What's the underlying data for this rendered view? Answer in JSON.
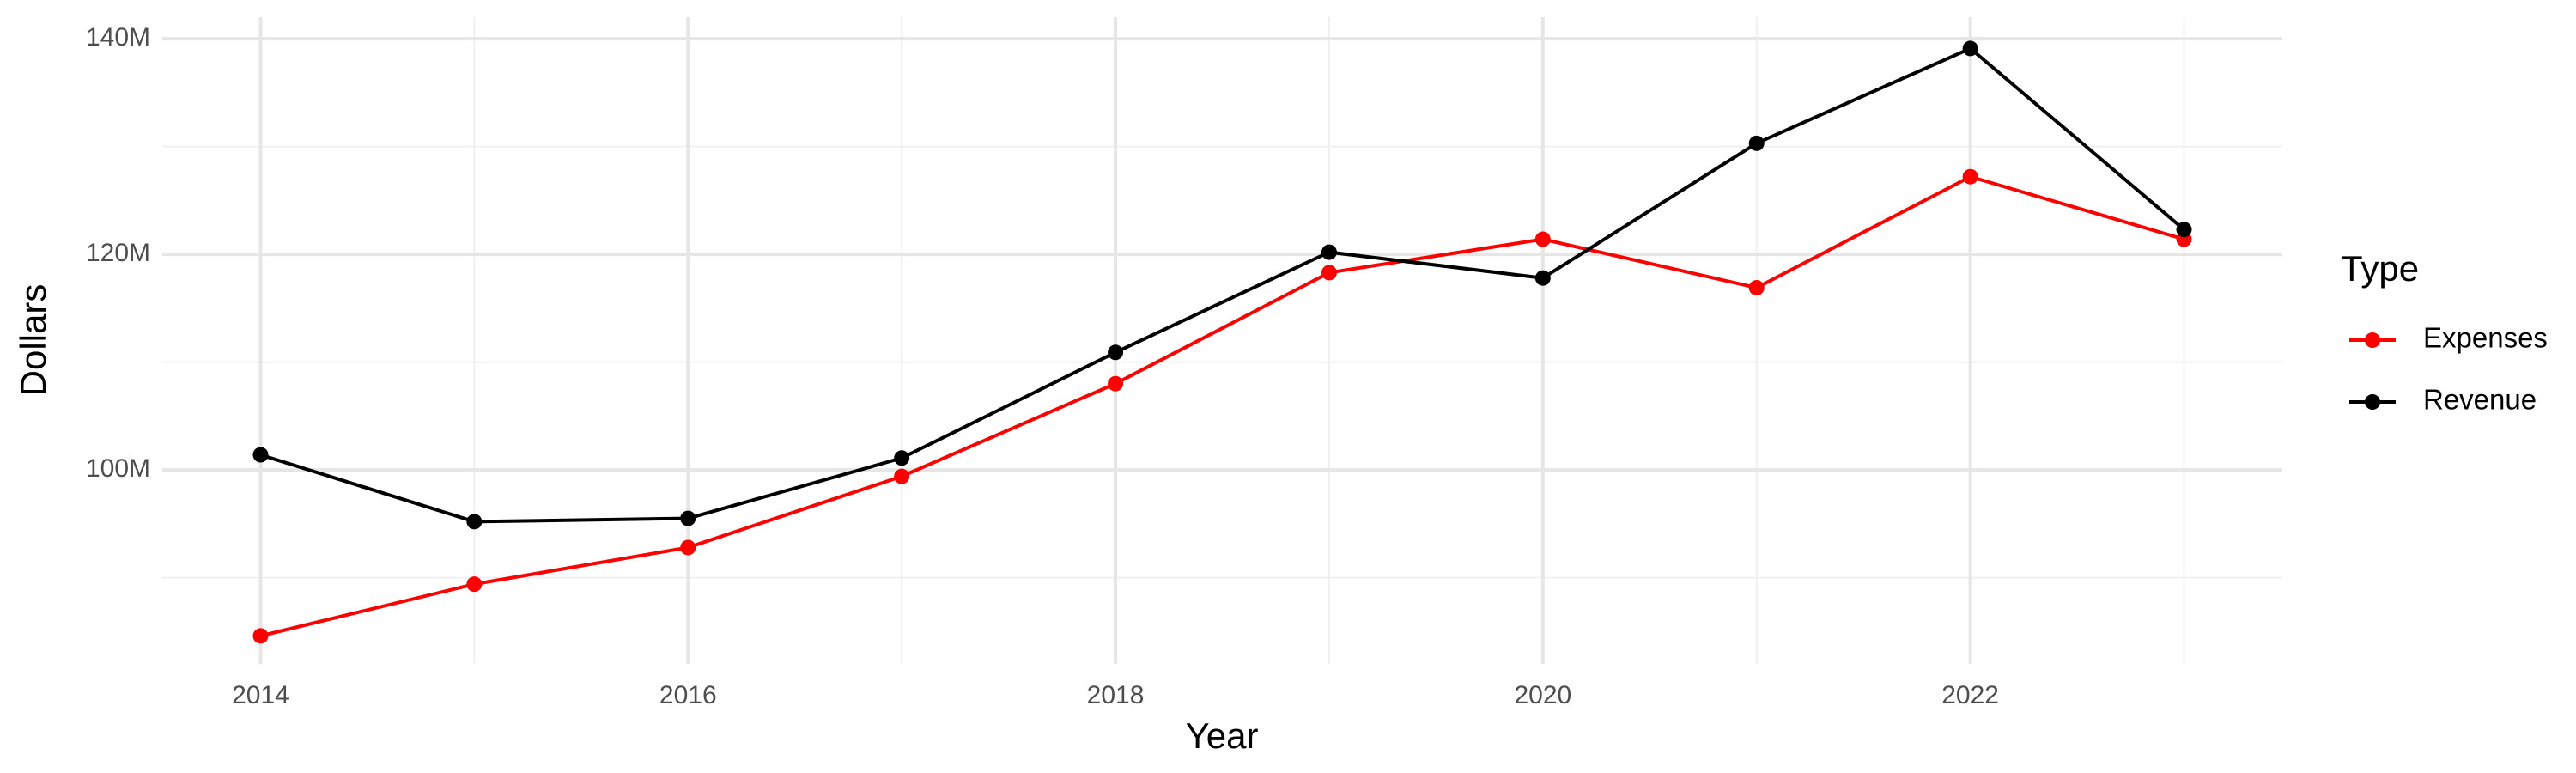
{
  "chart_data": {
    "type": "line",
    "x_label": "Year",
    "y_label": "Dollars",
    "legend_title": "Type",
    "x": [
      2014,
      2015,
      2016,
      2017,
      2018,
      2019,
      2020,
      2021,
      2022,
      2023
    ],
    "series": [
      {
        "name": "Expenses",
        "color": "#ff0000",
        "values": [
          84600000,
          89400000,
          92800000,
          99400000,
          108000000,
          118300000,
          121400000,
          116900000,
          127200000,
          121400000
        ]
      },
      {
        "name": "Revenue",
        "color": "#000000",
        "values": [
          101400000,
          95200000,
          95500000,
          101100000,
          110900000,
          120200000,
          117800000,
          130300000,
          139100000,
          122300000
        ]
      }
    ],
    "xlim": [
      2013.54,
      2023.46
    ],
    "ylim": [
      82000000,
      142000000
    ],
    "xticks": [
      2014,
      2016,
      2018,
      2020,
      2022
    ],
    "x_minor_ticks": [
      2015,
      2017,
      2019,
      2021,
      2023
    ],
    "yticks": [
      {
        "value": 100000000,
        "label": "100M"
      },
      {
        "value": 120000000,
        "label": "120M"
      },
      {
        "value": 140000000,
        "label": "140M"
      }
    ],
    "y_minor_ticks": [
      90000000,
      110000000,
      130000000
    ],
    "grid": true,
    "legend": "right"
  }
}
